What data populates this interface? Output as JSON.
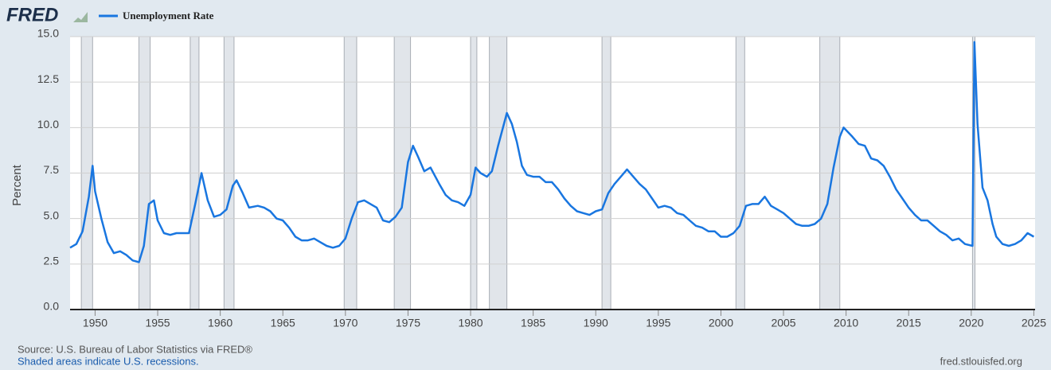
{
  "chart_data": {
    "type": "line",
    "logo": "FRED",
    "y_label": "Percent",
    "source": "Source: U.S. Bureau of Labor Statistics via FRED®",
    "note": "Shaded areas indicate U.S. recessions.",
    "url": "fred.stlouisfed.org",
    "grid": true,
    "xlim": [
      1948,
      2025.1
    ],
    "ylim": [
      0,
      15
    ],
    "xticks": [
      1950,
      1955,
      1960,
      1965,
      1970,
      1975,
      1980,
      1985,
      1990,
      1995,
      2000,
      2005,
      2010,
      2015,
      2020,
      2025
    ],
    "yticks": [
      {
        "value": 0,
        "label": "0.0"
      },
      {
        "value": 2.5,
        "label": "2.5"
      },
      {
        "value": 5,
        "label": "5.0"
      },
      {
        "value": 7.5,
        "label": "7.5"
      },
      {
        "value": 10,
        "label": "10.0"
      },
      {
        "value": 12.5,
        "label": "12.5"
      },
      {
        "value": 15,
        "label": "15.0"
      }
    ],
    "recessions": [
      [
        1948.9,
        1949.8
      ],
      [
        1953.5,
        1954.4
      ],
      [
        1957.6,
        1958.3
      ],
      [
        1960.3,
        1961.1
      ],
      [
        1969.9,
        1970.9
      ],
      [
        1973.9,
        1975.2
      ],
      [
        1980.0,
        1980.5
      ],
      [
        1981.5,
        1982.9
      ],
      [
        1990.5,
        1991.2
      ],
      [
        2001.2,
        2001.9
      ],
      [
        2007.9,
        2009.5
      ],
      [
        2020.1,
        2020.3
      ]
    ],
    "x": [
      1948.0,
      1948.5,
      1949.0,
      1949.5,
      1949.8,
      1950.0,
      1950.5,
      1951.0,
      1951.5,
      1952.0,
      1952.5,
      1953.0,
      1953.5,
      1953.9,
      1954.3,
      1954.7,
      1955.0,
      1955.5,
      1956.0,
      1956.5,
      1957.0,
      1957.5,
      1958.0,
      1958.5,
      1959.0,
      1959.5,
      1960.0,
      1960.5,
      1961.0,
      1961.3,
      1961.8,
      1962.3,
      1963.0,
      1963.5,
      1964.0,
      1964.5,
      1965.0,
      1965.5,
      1966.0,
      1966.5,
      1967.0,
      1967.5,
      1968.0,
      1968.5,
      1969.0,
      1969.5,
      1970.0,
      1970.5,
      1971.0,
      1971.5,
      1972.0,
      1972.5,
      1973.0,
      1973.5,
      1974.0,
      1974.5,
      1975.0,
      1975.4,
      1975.8,
      1976.3,
      1976.8,
      1977.5,
      1978.0,
      1978.5,
      1979.0,
      1979.5,
      1980.0,
      1980.4,
      1980.8,
      1981.3,
      1981.7,
      1982.2,
      1982.9,
      1983.3,
      1983.7,
      1984.1,
      1984.5,
      1985.0,
      1985.5,
      1986.0,
      1986.5,
      1987.0,
      1987.5,
      1988.0,
      1988.5,
      1989.0,
      1989.5,
      1990.0,
      1990.5,
      1991.0,
      1991.5,
      1992.0,
      1992.5,
      1993.0,
      1993.5,
      1994.0,
      1994.5,
      1995.0,
      1995.5,
      1996.0,
      1996.5,
      1997.0,
      1997.5,
      1998.0,
      1998.5,
      1999.0,
      1999.5,
      2000.0,
      2000.5,
      2001.0,
      2001.5,
      2002.0,
      2002.5,
      2003.0,
      2003.5,
      2004.0,
      2004.5,
      2005.0,
      2005.5,
      2006.0,
      2006.5,
      2007.0,
      2007.5,
      2008.0,
      2008.5,
      2009.0,
      2009.5,
      2009.8,
      2010.5,
      2011.0,
      2011.5,
      2012.0,
      2012.5,
      2013.0,
      2013.5,
      2014.0,
      2014.5,
      2015.0,
      2015.5,
      2016.0,
      2016.5,
      2017.0,
      2017.5,
      2018.0,
      2018.5,
      2019.0,
      2019.5,
      2020.1,
      2020.25,
      2020.5,
      2020.9,
      2021.3,
      2021.7,
      2022.0,
      2022.5,
      2023.0,
      2023.5,
      2024.0,
      2024.5,
      2025.0
    ],
    "series": [
      {
        "name": "Unemployment Rate",
        "color": "#1976e0",
        "values": [
          3.4,
          3.6,
          4.3,
          6.2,
          7.9,
          6.5,
          5.0,
          3.7,
          3.1,
          3.2,
          3.0,
          2.7,
          2.6,
          3.5,
          5.8,
          6.0,
          4.9,
          4.2,
          4.1,
          4.2,
          4.2,
          4.2,
          5.8,
          7.5,
          6.0,
          5.1,
          5.2,
          5.5,
          6.8,
          7.1,
          6.4,
          5.6,
          5.7,
          5.6,
          5.4,
          5.0,
          4.9,
          4.5,
          4.0,
          3.8,
          3.8,
          3.9,
          3.7,
          3.5,
          3.4,
          3.5,
          3.9,
          5.0,
          5.9,
          6.0,
          5.8,
          5.6,
          4.9,
          4.8,
          5.1,
          5.6,
          8.1,
          9.0,
          8.4,
          7.6,
          7.8,
          6.9,
          6.3,
          6.0,
          5.9,
          5.7,
          6.3,
          7.8,
          7.5,
          7.3,
          7.6,
          9.0,
          10.8,
          10.2,
          9.2,
          7.9,
          7.4,
          7.3,
          7.3,
          7.0,
          7.0,
          6.6,
          6.1,
          5.7,
          5.4,
          5.3,
          5.2,
          5.4,
          5.5,
          6.4,
          6.9,
          7.3,
          7.7,
          7.3,
          6.9,
          6.6,
          6.1,
          5.6,
          5.7,
          5.6,
          5.3,
          5.2,
          4.9,
          4.6,
          4.5,
          4.3,
          4.3,
          4.0,
          4.0,
          4.2,
          4.6,
          5.7,
          5.8,
          5.8,
          6.2,
          5.7,
          5.5,
          5.3,
          5.0,
          4.7,
          4.6,
          4.6,
          4.7,
          5.0,
          5.8,
          7.8,
          9.5,
          10.0,
          9.5,
          9.1,
          9.0,
          8.3,
          8.2,
          7.9,
          7.3,
          6.6,
          6.1,
          5.6,
          5.2,
          4.9,
          4.9,
          4.6,
          4.3,
          4.1,
          3.8,
          3.9,
          3.6,
          3.5,
          14.7,
          10.2,
          6.7,
          6.0,
          4.7,
          4.0,
          3.6,
          3.5,
          3.6,
          3.8,
          4.2,
          4.0
        ]
      }
    ]
  }
}
